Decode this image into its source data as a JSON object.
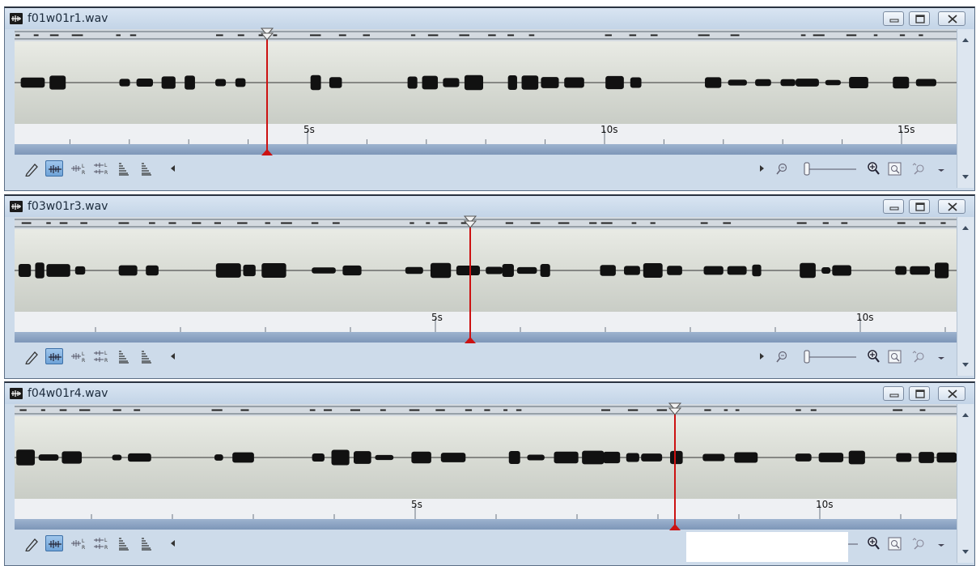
{
  "windows": [
    {
      "title": "f01w01r1.wav",
      "ruler_labels": [
        "5s",
        "10s",
        "15s"
      ],
      "cursor_time_s": 4.3,
      "visible_duration_s": 15.7
    },
    {
      "title": "f03w01r3.wav",
      "ruler_labels": [
        "5s",
        "10s"
      ],
      "cursor_time_s": 5.4,
      "visible_duration_s": 11.1
    },
    {
      "title": "f04w01r4.wav",
      "ruler_labels": [
        "5s",
        "10s"
      ],
      "cursor_time_s": 8.2,
      "visible_duration_s": 11.9
    }
  ],
  "toolbar": {
    "icons": [
      "pencil-icon",
      "waveform-mono-icon",
      "waveform-left-icon",
      "waveform-lr-icon",
      "spectrum-left-icon",
      "spectrum-right-icon",
      "scroll-left-icon",
      "scroll-right-icon",
      "zoom-out-icon",
      "zoom-slider",
      "zoom-in-icon",
      "zoom-fit-icon",
      "zoom-selection-icon",
      "toolbar-dropdown-icon"
    ]
  },
  "window_controls": [
    "minimize-icon",
    "maximize-icon",
    "close-icon"
  ],
  "colors": {
    "cursor": "#cc1111",
    "frame": "#cddbea",
    "waveform": "#111111",
    "active_tool": "#6fa3d8"
  }
}
